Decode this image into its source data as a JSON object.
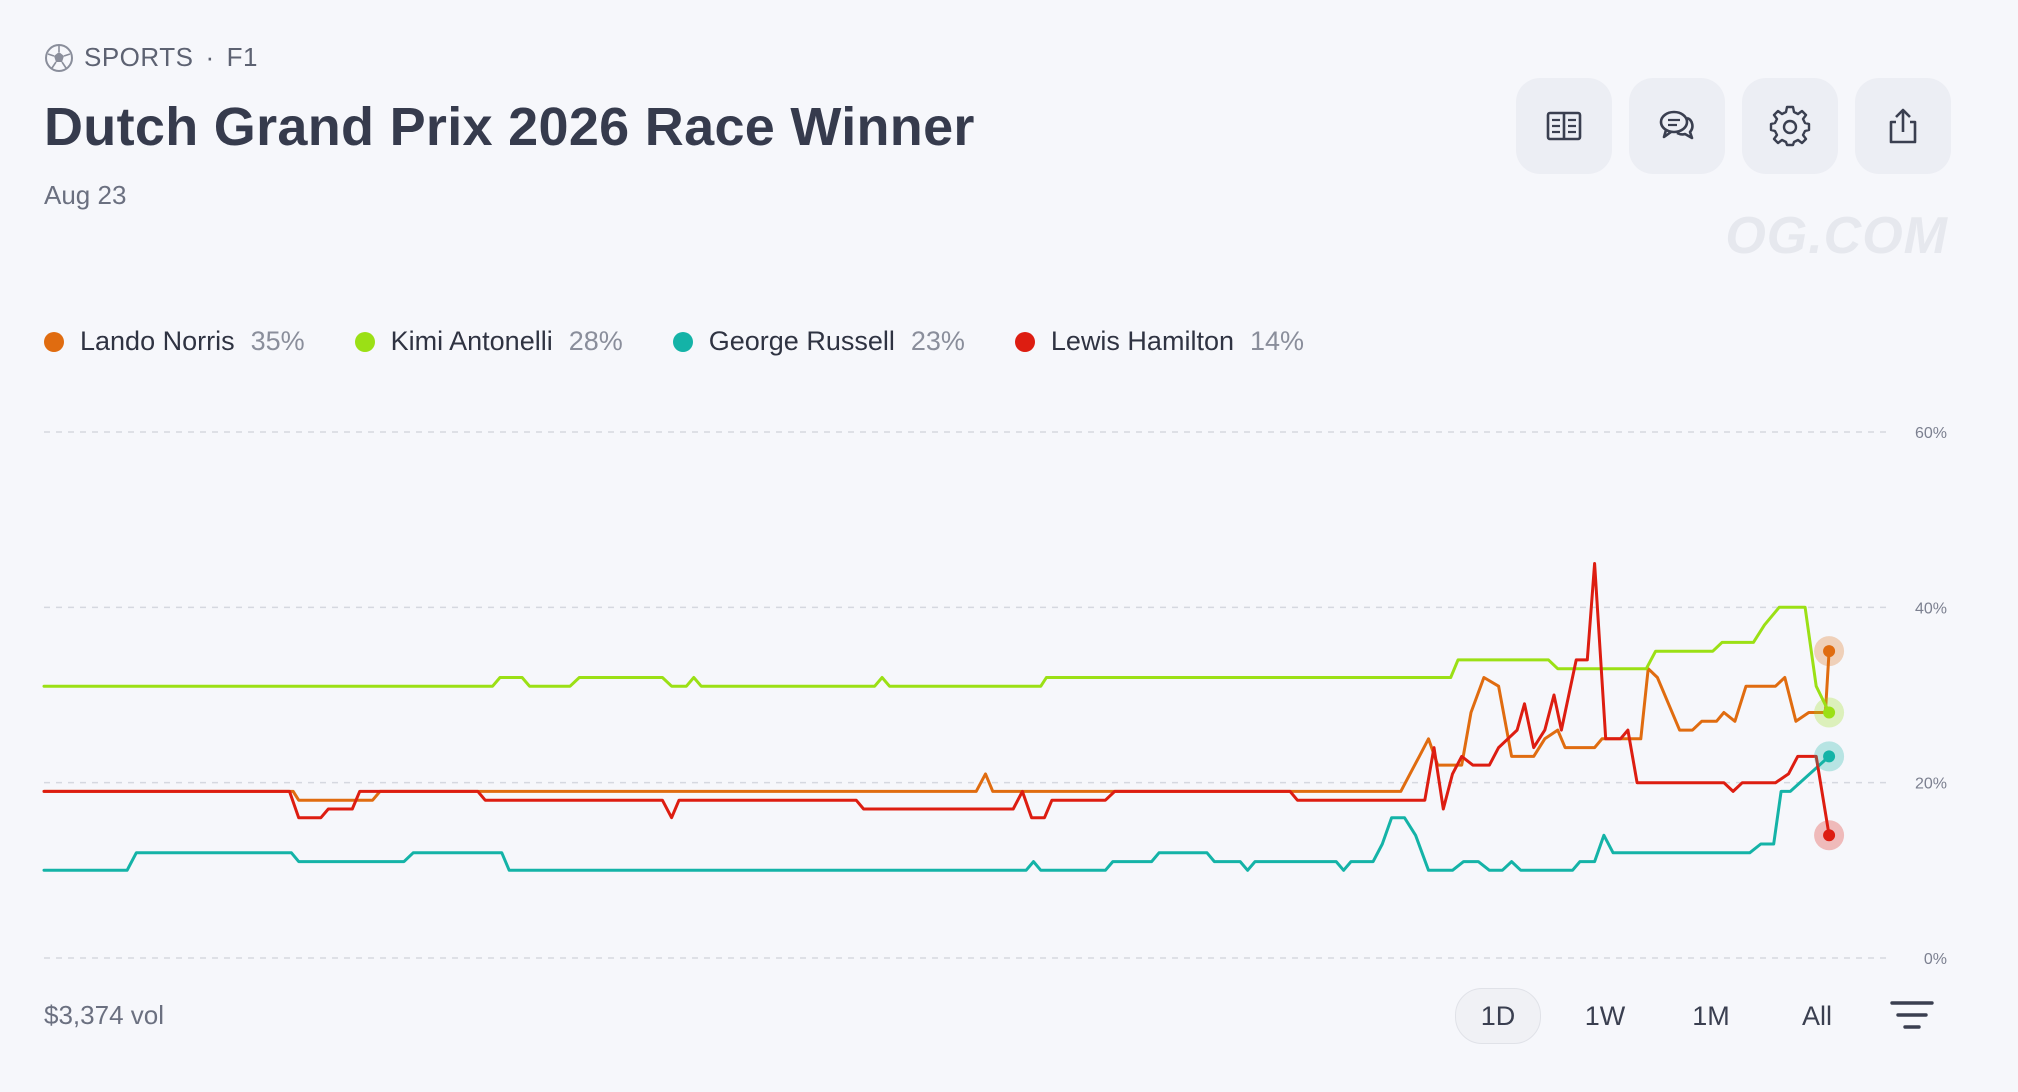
{
  "header": {
    "category": "SPORTS",
    "separator": "·",
    "subcategory": "F1",
    "title": "Dutch Grand Prix 2026 Race Winner",
    "date": "Aug 23",
    "watermark": "OG.COM"
  },
  "toolbar": {
    "buttons": [
      {
        "name": "rules-button",
        "icon": "book-icon"
      },
      {
        "name": "comments-button",
        "icon": "chat-bubbles-icon"
      },
      {
        "name": "settings-button",
        "icon": "gear-icon"
      },
      {
        "name": "share-button",
        "icon": "share-icon"
      }
    ]
  },
  "legend": [
    {
      "name": "Lando Norris",
      "pct": "35%",
      "color": "#e06c10"
    },
    {
      "name": "Kimi Antonelli",
      "pct": "28%",
      "color": "#9be015"
    },
    {
      "name": "George Russell",
      "pct": "23%",
      "color": "#14b3a7"
    },
    {
      "name": "Lewis Hamilton",
      "pct": "14%",
      "color": "#dd1d11"
    }
  ],
  "footer": {
    "volume": "$3,374 vol",
    "ranges": [
      "1D",
      "1W",
      "1M",
      "All"
    ],
    "active_range": "1D"
  },
  "chart_data": {
    "type": "line",
    "x_domain": [
      0,
      100
    ],
    "ylim": [
      0,
      60
    ],
    "yticks": [
      0,
      20,
      40,
      60
    ],
    "ytick_labels": [
      "0%",
      "20%",
      "40%",
      "60%"
    ],
    "grid": true,
    "series": [
      {
        "name": "Lando Norris",
        "color": "#e06c10",
        "end_value": 35,
        "points": [
          [
            0,
            19
          ],
          [
            13.5,
            19
          ],
          [
            13.8,
            18
          ],
          [
            17.8,
            18
          ],
          [
            18.2,
            19
          ],
          [
            50.5,
            19
          ],
          [
            51,
            21
          ],
          [
            51.4,
            19
          ],
          [
            73.5,
            19
          ],
          [
            74,
            21
          ],
          [
            74.5,
            23
          ],
          [
            75,
            25
          ],
          [
            75.5,
            22
          ],
          [
            76.8,
            22
          ],
          [
            77.3,
            28
          ],
          [
            78,
            32
          ],
          [
            78.8,
            31
          ],
          [
            79.5,
            23
          ],
          [
            80.7,
            23
          ],
          [
            81.3,
            25
          ],
          [
            82,
            26
          ],
          [
            82.4,
            24
          ],
          [
            84,
            24
          ],
          [
            84.4,
            25
          ],
          [
            86.5,
            25
          ],
          [
            86.9,
            33
          ],
          [
            87.4,
            32
          ],
          [
            88,
            29
          ],
          [
            88.6,
            26
          ],
          [
            89.3,
            26
          ],
          [
            89.8,
            27
          ],
          [
            90.6,
            27
          ],
          [
            91,
            28
          ],
          [
            91.6,
            27
          ],
          [
            92.2,
            31
          ],
          [
            93.8,
            31
          ],
          [
            94.3,
            32
          ],
          [
            94.9,
            27
          ],
          [
            95.6,
            28
          ],
          [
            96.5,
            28
          ],
          [
            96.7,
            35
          ]
        ]
      },
      {
        "name": "Kimi Antonelli",
        "color": "#9be015",
        "end_value": 28,
        "points": [
          [
            0,
            31
          ],
          [
            24.3,
            31
          ],
          [
            24.7,
            32
          ],
          [
            25.9,
            32
          ],
          [
            26.3,
            31
          ],
          [
            28.5,
            31
          ],
          [
            29,
            32
          ],
          [
            33.5,
            32
          ],
          [
            34,
            31
          ],
          [
            34.8,
            31
          ],
          [
            35.2,
            32
          ],
          [
            35.6,
            31
          ],
          [
            45,
            31
          ],
          [
            45.4,
            32
          ],
          [
            45.8,
            31
          ],
          [
            54,
            31
          ],
          [
            54.3,
            32
          ],
          [
            76.2,
            32
          ],
          [
            76.6,
            34
          ],
          [
            81.5,
            34
          ],
          [
            82,
            33
          ],
          [
            86.8,
            33
          ],
          [
            87.3,
            35
          ],
          [
            90.4,
            35
          ],
          [
            90.9,
            36
          ],
          [
            92.6,
            36
          ],
          [
            93.2,
            38
          ],
          [
            94,
            40
          ],
          [
            95.4,
            40
          ],
          [
            96,
            31
          ],
          [
            96.7,
            28
          ]
        ]
      },
      {
        "name": "George Russell",
        "color": "#14b3a7",
        "end_value": 23,
        "points": [
          [
            0,
            10
          ],
          [
            4.5,
            10
          ],
          [
            5,
            12
          ],
          [
            13.4,
            12
          ],
          [
            13.8,
            11
          ],
          [
            19.5,
            11
          ],
          [
            20,
            12
          ],
          [
            24.8,
            12
          ],
          [
            25.2,
            10
          ],
          [
            53.2,
            10
          ],
          [
            53.6,
            11
          ],
          [
            54,
            10
          ],
          [
            57.5,
            10
          ],
          [
            57.9,
            11
          ],
          [
            60,
            11
          ],
          [
            60.4,
            12
          ],
          [
            63,
            12
          ],
          [
            63.4,
            11
          ],
          [
            64.8,
            11
          ],
          [
            65.2,
            10
          ],
          [
            65.6,
            11
          ],
          [
            70,
            11
          ],
          [
            70.4,
            10
          ],
          [
            70.8,
            11
          ],
          [
            72,
            11
          ],
          [
            72.5,
            13
          ],
          [
            73,
            16
          ],
          [
            73.7,
            16
          ],
          [
            74.3,
            14
          ],
          [
            75,
            10
          ],
          [
            76.3,
            10
          ],
          [
            76.9,
            11
          ],
          [
            77.7,
            11
          ],
          [
            78.3,
            10
          ],
          [
            79,
            10
          ],
          [
            79.5,
            11
          ],
          [
            80,
            10
          ],
          [
            82.8,
            10
          ],
          [
            83.2,
            11
          ],
          [
            84,
            11
          ],
          [
            84.5,
            14
          ],
          [
            85,
            12
          ],
          [
            92.4,
            12
          ],
          [
            93,
            13
          ],
          [
            93.7,
            13
          ],
          [
            94.1,
            19
          ],
          [
            94.6,
            19
          ],
          [
            96.7,
            23
          ]
        ]
      },
      {
        "name": "Lewis Hamilton",
        "color": "#dd1d11",
        "end_value": 14,
        "points": [
          [
            0,
            19
          ],
          [
            13.3,
            19
          ],
          [
            13.8,
            16
          ],
          [
            15,
            16
          ],
          [
            15.4,
            17
          ],
          [
            16.7,
            17
          ],
          [
            17.1,
            19
          ],
          [
            23.5,
            19
          ],
          [
            23.9,
            18
          ],
          [
            33.5,
            18
          ],
          [
            34,
            16
          ],
          [
            34.4,
            18
          ],
          [
            44,
            18
          ],
          [
            44.4,
            17
          ],
          [
            52.5,
            17
          ],
          [
            53,
            19
          ],
          [
            53.5,
            16
          ],
          [
            54.2,
            16
          ],
          [
            54.6,
            18
          ],
          [
            57.5,
            18
          ],
          [
            58,
            19
          ],
          [
            67.5,
            19
          ],
          [
            67.9,
            18
          ],
          [
            74.8,
            18
          ],
          [
            75.3,
            24
          ],
          [
            75.8,
            17
          ],
          [
            76.3,
            21
          ],
          [
            76.8,
            23
          ],
          [
            77.4,
            22
          ],
          [
            78.3,
            22
          ],
          [
            78.8,
            24
          ],
          [
            79.3,
            25
          ],
          [
            79.8,
            26
          ],
          [
            80.2,
            29
          ],
          [
            80.7,
            24
          ],
          [
            81.3,
            26
          ],
          [
            81.8,
            30
          ],
          [
            82.2,
            26
          ],
          [
            83,
            34
          ],
          [
            83.6,
            34
          ],
          [
            84,
            45
          ],
          [
            84.6,
            25
          ],
          [
            85.4,
            25
          ],
          [
            85.8,
            26
          ],
          [
            86.3,
            20
          ],
          [
            91,
            20
          ],
          [
            91.5,
            19
          ],
          [
            92,
            20
          ],
          [
            93.8,
            20
          ],
          [
            94.5,
            21
          ],
          [
            95,
            23
          ],
          [
            96,
            23
          ],
          [
            96.7,
            14
          ]
        ]
      }
    ]
  }
}
